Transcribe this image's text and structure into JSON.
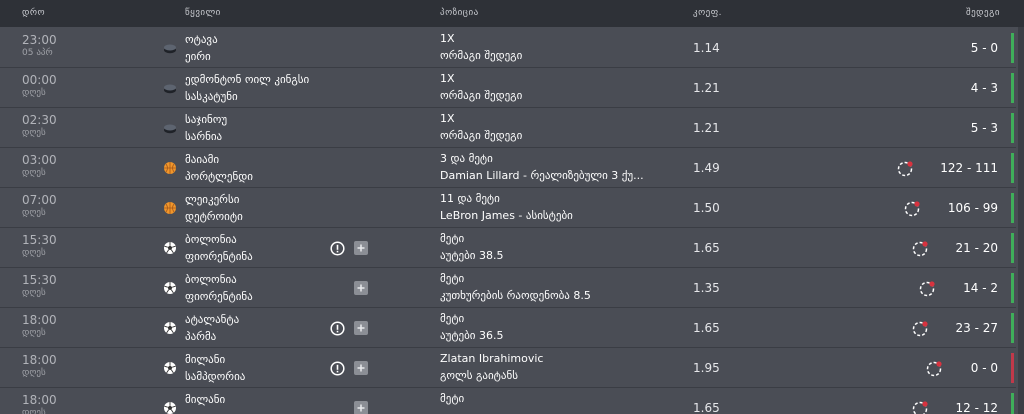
{
  "header": {
    "time": "დრო",
    "pair": "წყვილი",
    "position": "პოზიცია",
    "odds": "კოეფ.",
    "result": "შედეგი"
  },
  "rows": [
    {
      "time": "23:00",
      "date": "05 აპრ",
      "team1": "ოტავა",
      "team2": "ეირი",
      "sport": "hockey",
      "info": false,
      "plus": false,
      "pos1": "1X",
      "pos2": "ორმაგი შედეგი",
      "odds": "1.14",
      "live": false,
      "result": "5 - 0",
      "status_color": "#3fae5a"
    },
    {
      "time": "00:00",
      "date": "დღეს",
      "team1": "ედმონტონ ოილ კინგსი",
      "team2": "სასკატუნი",
      "sport": "hockey",
      "info": false,
      "plus": false,
      "pos1": "1X",
      "pos2": "ორმაგი შედეგი",
      "odds": "1.21",
      "live": false,
      "result": "4 - 3",
      "status_color": "#3fae5a"
    },
    {
      "time": "02:30",
      "date": "დღეს",
      "team1": "საჯინოუ",
      "team2": "სარნია",
      "sport": "hockey",
      "info": false,
      "plus": false,
      "pos1": "1X",
      "pos2": "ორმაგი შედეგი",
      "odds": "1.21",
      "live": false,
      "result": "5 - 3",
      "status_color": "#3fae5a"
    },
    {
      "time": "03:00",
      "date": "დღეს",
      "team1": "მაიამი",
      "team2": "პორტლენდი",
      "sport": "basketball",
      "info": false,
      "plus": false,
      "pos1": "3 და მეტი",
      "pos2": "Damian Lillard - რეალიზებული 3 ქუ...",
      "odds": "1.49",
      "live": true,
      "result": "122 - 111",
      "status_color": "#3fae5a"
    },
    {
      "time": "07:00",
      "date": "დღეს",
      "team1": "ლეიკერსი",
      "team2": "დეტროიტი",
      "sport": "basketball",
      "info": false,
      "plus": false,
      "pos1": "11 და მეტი",
      "pos2": "LeBron James - ასისტები",
      "odds": "1.50",
      "live": true,
      "result": "106 - 99",
      "status_color": "#3fae5a"
    },
    {
      "time": "15:30",
      "date": "დღეს",
      "team1": "ბოლონია",
      "team2": "ფიორენტინა",
      "sport": "football",
      "info": true,
      "plus": true,
      "pos1": "მეტი",
      "pos2": "აუტები 38.5",
      "odds": "1.65",
      "live": true,
      "result": "21 - 20",
      "status_color": "#3fae5a"
    },
    {
      "time": "15:30",
      "date": "დღეს",
      "team1": "ბოლონია",
      "team2": "ფიორენტინა",
      "sport": "football",
      "info": false,
      "plus": true,
      "pos1": "მეტი",
      "pos2": "კუთხურების რაოდენობა 8.5",
      "odds": "1.35",
      "live": true,
      "result": "14 - 2",
      "status_color": "#3fae5a"
    },
    {
      "time": "18:00",
      "date": "დღეს",
      "team1": "ატალანტა",
      "team2": "პარმა",
      "sport": "football",
      "info": true,
      "plus": true,
      "pos1": "მეტი",
      "pos2": "აუტები 36.5",
      "odds": "1.65",
      "live": true,
      "result": "23 - 27",
      "status_color": "#3fae5a"
    },
    {
      "time": "18:00",
      "date": "დღეს",
      "team1": "მილანი",
      "team2": "სამპდორია",
      "sport": "football",
      "info": true,
      "plus": true,
      "pos1": "Zlatan Ibrahimovic",
      "pos2": "გოლს გაიტანს",
      "odds": "1.95",
      "live": true,
      "result": "0 - 0",
      "status_color": "#c0394a"
    },
    {
      "time": "18:00",
      "date": "დღეს",
      "team1": "მილანი",
      "team2": "",
      "sport": "football",
      "info": false,
      "plus": true,
      "pos1": "მეტი",
      "pos2": "",
      "odds": "1.65",
      "live": true,
      "result": "12 - 12",
      "status_color": "#3fae5a"
    }
  ]
}
